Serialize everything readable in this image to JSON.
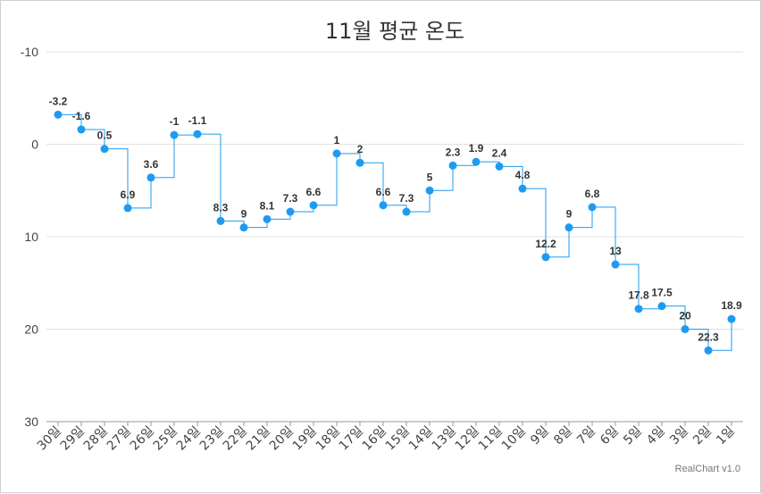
{
  "chart_data": {
    "type": "line",
    "step": true,
    "title": "11월 평균 온도",
    "y_reversed": true,
    "ylim": [
      -10,
      30
    ],
    "yticks": [
      -10,
      0,
      10,
      20,
      30
    ],
    "categories": [
      "30일",
      "29일",
      "28일",
      "27일",
      "26일",
      "25일",
      "24일",
      "23일",
      "22일",
      "21일",
      "20일",
      "19일",
      "18일",
      "17일",
      "16일",
      "15일",
      "14일",
      "13일",
      "12일",
      "11일",
      "10일",
      "9일",
      "8일",
      "7일",
      "6일",
      "5일",
      "4일",
      "3일",
      "2일",
      "1일"
    ],
    "values": [
      -3.2,
      -1.6,
      0.5,
      6.9,
      3.6,
      -1,
      -1.1,
      8.3,
      9,
      8.1,
      7.3,
      6.6,
      1,
      2,
      6.6,
      7.3,
      5,
      2.3,
      1.9,
      2.4,
      4.8,
      12.2,
      9,
      6.8,
      13,
      17.8,
      17.5,
      20,
      22.3,
      18.9
    ],
    "grid": true,
    "series_color": "#1e9bf0",
    "credit": "RealChart v1.0"
  }
}
